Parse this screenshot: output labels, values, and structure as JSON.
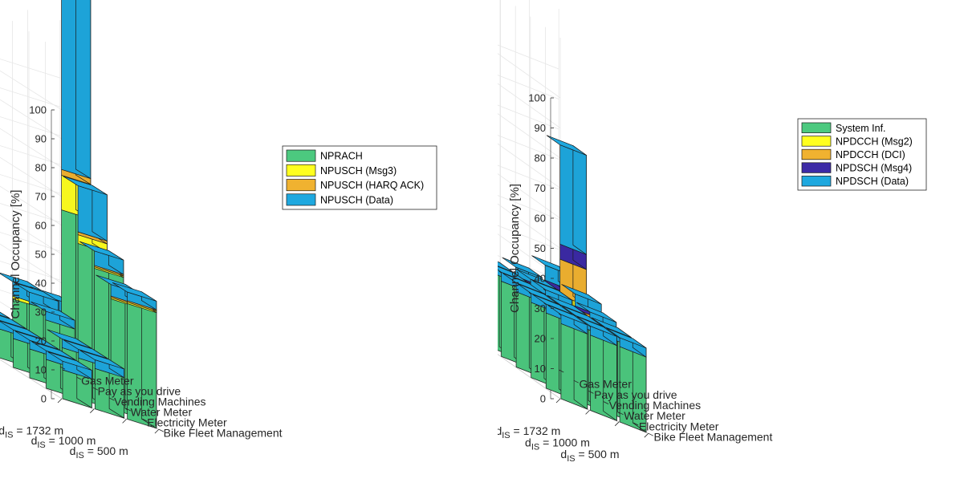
{
  "chart_data": [
    {
      "type": "bar3d-stacked",
      "ylabel": "Channel Occupancy [%]",
      "zlim": [
        0,
        100
      ],
      "yticks": [
        0,
        10,
        20,
        30,
        40,
        50,
        60,
        70,
        80,
        90,
        100
      ],
      "distances": [
        "d_IS = 1732 m",
        "d_IS = 1000 m",
        "d_IS = 500 m"
      ],
      "distance_labels": [
        {
          "main": "d",
          "sub": "IS",
          "rest": " = 1732 m"
        },
        {
          "main": "d",
          "sub": "IS",
          "rest": " = 1000 m"
        },
        {
          "main": "d",
          "sub": "IS",
          "rest": " = 500 m"
        }
      ],
      "applications": [
        "Bike Fleet Management",
        "Electricity Meter",
        "Water Meter",
        "Vending Machines",
        "Pay as you drive",
        "Gas Meter"
      ],
      "legend": {
        "position": "right",
        "entries": [
          "NPRACH",
          "NPUSCH (Msg3)",
          "NPUSCH (HARQ ACK)",
          "NPUSCH (Data)"
        ]
      },
      "colors": [
        "#4cc97f",
        "#ffff1f",
        "#f0b230",
        "#1ea8df"
      ],
      "series_order": "distance x application x [NPRACH, Msg3, HARQ ACK, Data]",
      "values": [
        [
          [
            10,
            0,
            0,
            3
          ],
          [
            10,
            0,
            0,
            3
          ],
          [
            10,
            0,
            0,
            3
          ],
          [
            10,
            0,
            0,
            3
          ],
          [
            10,
            0,
            0,
            3
          ],
          [
            10,
            0,
            0,
            3
          ]
        ],
        [
          [
            14,
            0,
            0,
            3
          ],
          [
            14,
            0,
            0,
            3
          ],
          [
            14,
            0,
            0,
            3
          ],
          [
            20,
            0,
            0,
            3
          ],
          [
            22,
            0,
            0,
            4
          ],
          [
            20,
            1,
            0,
            5
          ]
        ],
        [
          [
            40,
            0.5,
            0.5,
            3
          ],
          [
            38,
            0.5,
            0.5,
            4
          ],
          [
            45,
            0.5,
            0.5,
            5
          ],
          [
            50,
            3,
            1,
            16
          ],
          [
            58,
            12,
            2,
            62
          ],
          [
            18,
            1,
            0.5,
            5
          ]
        ]
      ]
    },
    {
      "type": "bar3d-stacked",
      "ylabel": "Channel Occupancy [%]",
      "zlim": [
        0,
        100
      ],
      "yticks": [
        0,
        10,
        20,
        30,
        40,
        50,
        60,
        70,
        80,
        90,
        100
      ],
      "distances": [
        "d_IS = 1732 m",
        "d_IS = 1000 m",
        "d_IS = 500 m"
      ],
      "distance_labels": [
        {
          "main": "d",
          "sub": "IS",
          "rest": " = 1732 m"
        },
        {
          "main": "d",
          "sub": "IS",
          "rest": " = 1000 m"
        },
        {
          "main": "d",
          "sub": "IS",
          "rest": " = 500 m"
        }
      ],
      "applications": [
        "Bike Fleet Management",
        "Electricity Meter",
        "Water Meter",
        "Vending Machines",
        "Pay as you drive",
        "Gas Meter"
      ],
      "legend": {
        "position": "right",
        "entries": [
          "System Inf.",
          "NPDCCH (Msg2)",
          "NPDCCH (DCI)",
          "NPDSCH (Msg4)",
          "NPDSCH (Data)"
        ]
      },
      "colors": [
        "#4cc97f",
        "#ffff1f",
        "#f0b230",
        "#3c2aa6",
        "#1ea8df"
      ],
      "series_order": "distance x application x [System Inf., Msg2, DCI, Msg4, Data]",
      "values": [
        [
          [
            25,
            0,
            0,
            0,
            3
          ],
          [
            25,
            0,
            0,
            0,
            3
          ],
          [
            25,
            0,
            0,
            0,
            3
          ],
          [
            25,
            0,
            0,
            0,
            3
          ],
          [
            25,
            0,
            0,
            0,
            3
          ],
          [
            25,
            0,
            0,
            0,
            3
          ]
        ],
        [
          [
            25,
            0,
            0,
            0,
            3
          ],
          [
            25,
            0,
            0,
            0,
            3
          ],
          [
            25,
            0,
            0,
            0,
            3
          ],
          [
            25,
            0.5,
            0.5,
            0.5,
            3
          ],
          [
            25,
            0.5,
            0.5,
            0.5,
            3
          ],
          [
            25,
            0.5,
            1,
            0.5,
            3
          ]
        ],
        [
          [
            25,
            0,
            0,
            0,
            3
          ],
          [
            25,
            0,
            0,
            0,
            3
          ],
          [
            25,
            0.5,
            0.5,
            0.5,
            3
          ],
          [
            25,
            1,
            1,
            1,
            4
          ],
          [
            25,
            3,
            12,
            5,
            33
          ],
          [
            25,
            1,
            2,
            1.5,
            5
          ]
        ]
      ]
    }
  ]
}
